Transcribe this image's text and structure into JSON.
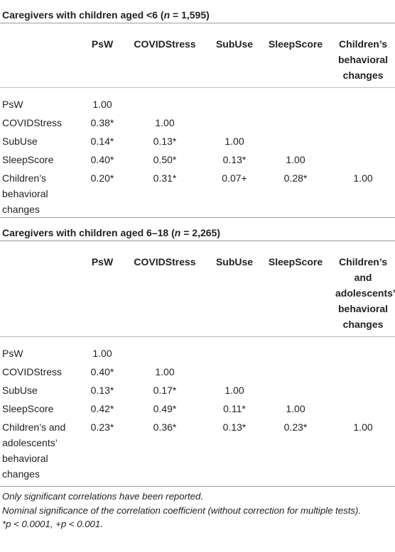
{
  "section1": {
    "title_prefix": "Caregivers with children aged <6 (",
    "title_n": "n",
    "title_suffix": " = 1,595)",
    "headers": [
      "PsW",
      "COVIDStress",
      "SubUse",
      "SleepScore",
      "Children’s behavioral changes"
    ],
    "rows": [
      {
        "label": "PsW",
        "values": [
          "1.00",
          "",
          "",
          "",
          ""
        ]
      },
      {
        "label": "COVIDStress",
        "values": [
          "0.38*",
          "1.00",
          "",
          "",
          ""
        ]
      },
      {
        "label": "SubUse",
        "values": [
          "0.14*",
          "0.13*",
          "1.00",
          "",
          ""
        ]
      },
      {
        "label": "SleepScore",
        "values": [
          "0.40*",
          "0.50*",
          "0.13*",
          "1.00",
          ""
        ]
      },
      {
        "label": "Children’s behavioral changes",
        "values": [
          "0.20*",
          "0.31*",
          "0.07+",
          "0.28*",
          "1.00"
        ]
      }
    ]
  },
  "section2": {
    "title_prefix": "Caregivers with children aged 6–18 (",
    "title_n": "n",
    "title_suffix": " = 2,265)",
    "headers": [
      "PsW",
      "COVIDStress",
      "SubUse",
      "SleepScore",
      "Children’s and adolescents’ behavioral changes"
    ],
    "rows": [
      {
        "label": "PsW",
        "values": [
          "1.00",
          "",
          "",
          "",
          ""
        ]
      },
      {
        "label": "COVIDStress",
        "values": [
          "0.40*",
          "1.00",
          "",
          "",
          ""
        ]
      },
      {
        "label": "SubUse",
        "values": [
          "0.13*",
          "0.17*",
          "1.00",
          "",
          ""
        ]
      },
      {
        "label": "SleepScore",
        "values": [
          "0.42*",
          "0.49*",
          "0.11*",
          "1.00",
          ""
        ]
      },
      {
        "label": "Children’s and adolescents’ behavioral changes",
        "values": [
          "0.23*",
          "0.36*",
          "0.13*",
          "0.23*",
          "1.00"
        ]
      }
    ]
  },
  "notes": {
    "line1": "Only significant correlations have been reported.",
    "line2": "Nominal significance of the correlation coefficient (without correction for multiple tests).",
    "line3": "*p < 0.0001, +p < 0.001."
  }
}
